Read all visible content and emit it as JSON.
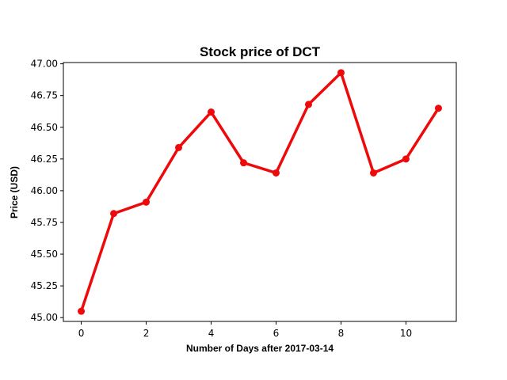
{
  "chart_data": {
    "type": "line",
    "title": "Stock price of DCT",
    "xlabel": "Number of Days after 2017-03-14",
    "ylabel": "Price (USD)",
    "x": [
      0,
      1,
      2,
      3,
      4,
      5,
      6,
      7,
      8,
      9,
      10,
      11
    ],
    "series": [
      {
        "values": [
          45.05,
          45.82,
          45.91,
          46.34,
          46.62,
          46.22,
          46.14,
          46.68,
          46.93,
          46.14,
          46.25,
          46.65
        ],
        "color": "#ee0a0a",
        "marker": "circle"
      }
    ],
    "xlim": [
      -0.55,
      11.55
    ],
    "ylim": [
      44.97,
      47.01
    ],
    "xticks": [
      0,
      2,
      4,
      6,
      8,
      10
    ],
    "xtick_labels": [
      "0",
      "2",
      "4",
      "6",
      "8",
      "10"
    ],
    "yticks": [
      45.0,
      45.25,
      45.5,
      45.75,
      46.0,
      46.25,
      46.5,
      46.75,
      47.0
    ],
    "ytick_labels": [
      "45.00",
      "45.25",
      "45.50",
      "45.75",
      "46.00",
      "46.25",
      "46.50",
      "46.75",
      "47.00"
    ],
    "grid": false,
    "legend": "none"
  }
}
